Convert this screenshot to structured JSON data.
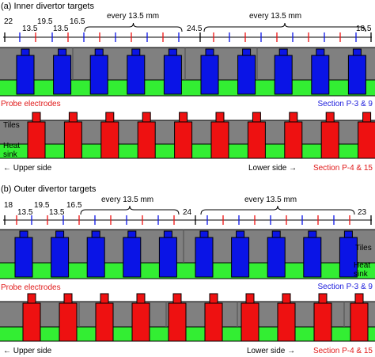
{
  "colors": {
    "tile": "#808080",
    "heat_sink": "#33ee33",
    "blue_electrode": "#0a14e6",
    "red_electrode": "#ee1111",
    "blue_text": "#1a1adc",
    "red_text": "#e01818",
    "outline": "#000000"
  },
  "panel_a": {
    "title": "(a) Inner divertor targets",
    "spacing": {
      "left_value": "22",
      "left_inner_1": "13.5",
      "left_inner_2": "19.5",
      "left_inner_3": "13.5",
      "left_inner_4": "16.5",
      "every_1": "every 13.5 mm",
      "middle": "24.5",
      "every_2": "every 13.5 mm",
      "right_value": "18.5"
    },
    "section_blue": "Section P-3 & 9",
    "probe_label": "Probe electrodes",
    "tiles_label": "Tiles",
    "heat_label_1": "Heat",
    "heat_label_2": "sink",
    "upper_side": "← Upper side",
    "lower_side": "Lower side →",
    "section_red": "Section P-4 & 15"
  },
  "panel_b": {
    "title": "(b) Outer divertor targets",
    "spacing": {
      "left_value": "18",
      "left_inner_1": "13.5",
      "left_inner_2": "19.5",
      "left_inner_3": "13.5",
      "left_inner_4": "16.5",
      "every_1": "every 13.5 mm",
      "middle": "24",
      "every_2": "every 13.5 mm",
      "right_value": "23"
    },
    "tiles_label": "Tiles",
    "heat_label_1": "Heat",
    "heat_label_2": "sink",
    "section_blue": "Section P-3 & 9",
    "probe_label": "Probe electrodes",
    "upper_side": "← Upper side",
    "lower_side": "Lower side →",
    "section_red": "Section P-4 & 15"
  }
}
